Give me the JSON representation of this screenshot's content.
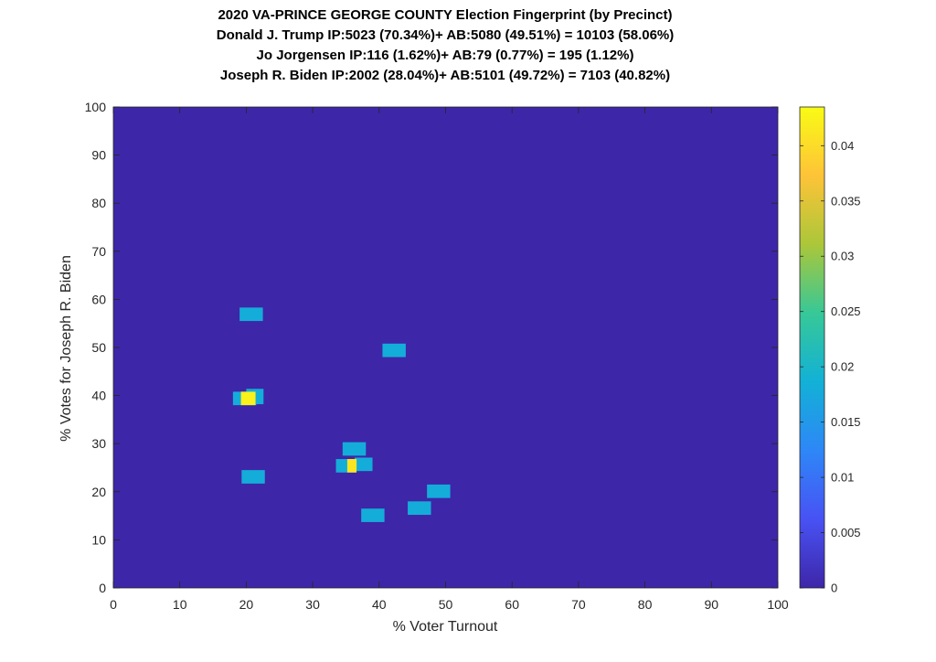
{
  "chart_data": {
    "type": "heatmap",
    "title_lines": [
      "2020 VA-PRINCE GEORGE COUNTY Election Fingerprint (by Precinct)",
      "Donald J. Trump IP:5023 (70.34%)+ AB:5080 (49.51%) = 10103 (58.06%)",
      "Jo Jorgensen IP:116 (1.62%)+ AB:79 (0.77%) = 195 (1.12%)",
      "Joseph R. Biden IP:2002 (28.04%)+ AB:5101 (49.72%) = 7103 (40.82%)"
    ],
    "xlabel": "% Voter Turnout",
    "ylabel": "% Votes for Joseph R. Biden",
    "xlim": [
      0,
      100
    ],
    "ylim": [
      0,
      100
    ],
    "xticks": [
      0,
      10,
      20,
      30,
      40,
      50,
      60,
      70,
      80,
      90,
      100
    ],
    "yticks": [
      0,
      10,
      20,
      30,
      40,
      50,
      60,
      70,
      80,
      90,
      100
    ],
    "colorbar": {
      "range": [
        0,
        0.0435
      ],
      "ticks": [
        0,
        0.005,
        0.01,
        0.015,
        0.02,
        0.025,
        0.03,
        0.035,
        0.04
      ],
      "tick_labels": [
        "0",
        "0.005",
        "0.01",
        "0.015",
        "0.02",
        "0.025",
        "0.03",
        "0.035",
        "0.04"
      ],
      "colormap": "parula"
    },
    "background_value": 0,
    "cells": [
      {
        "x": 19.0,
        "y": 55.5,
        "w": 3.5,
        "h": 2.8,
        "value": 0.018
      },
      {
        "x": 40.5,
        "y": 48.0,
        "w": 3.5,
        "h": 2.8,
        "value": 0.018
      },
      {
        "x": 18.0,
        "y": 38.0,
        "w": 3.5,
        "h": 2.8,
        "value": 0.018
      },
      {
        "x": 20.0,
        "y": 38.2,
        "w": 2.6,
        "h": 3.2,
        "value": 0.018
      },
      {
        "x": 19.2,
        "y": 38.0,
        "w": 2.2,
        "h": 2.8,
        "value": 0.0425
      },
      {
        "x": 34.5,
        "y": 27.5,
        "w": 3.5,
        "h": 2.8,
        "value": 0.018
      },
      {
        "x": 33.5,
        "y": 24.0,
        "w": 3.0,
        "h": 2.8,
        "value": 0.018
      },
      {
        "x": 36.3,
        "y": 24.3,
        "w": 2.7,
        "h": 2.8,
        "value": 0.018
      },
      {
        "x": 35.2,
        "y": 24.0,
        "w": 1.4,
        "h": 2.8,
        "value": 0.041
      },
      {
        "x": 19.3,
        "y": 21.7,
        "w": 3.5,
        "h": 2.8,
        "value": 0.018
      },
      {
        "x": 47.2,
        "y": 18.7,
        "w": 3.5,
        "h": 2.8,
        "value": 0.018
      },
      {
        "x": 44.3,
        "y": 15.2,
        "w": 3.5,
        "h": 2.8,
        "value": 0.018
      },
      {
        "x": 37.3,
        "y": 13.7,
        "w": 3.5,
        "h": 2.8,
        "value": 0.018
      }
    ]
  }
}
